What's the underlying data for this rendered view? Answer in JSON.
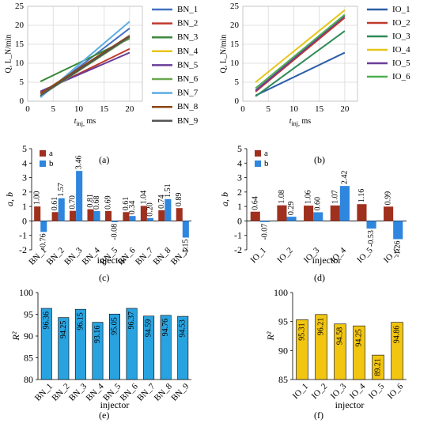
{
  "chart_data": [
    {
      "id": "a",
      "type": "line",
      "panel_label": "(a)",
      "xlabel": "t_inj, ms",
      "ylabel": "Q, L_N/min",
      "xlim": [
        0,
        22.5
      ],
      "ylim": [
        0,
        25
      ],
      "xticks": [
        0,
        5,
        10,
        15,
        20
      ],
      "yticks": [
        0,
        5,
        10,
        15,
        20,
        25
      ],
      "grid": true,
      "legend_position": "right",
      "series": [
        {
          "name": "BN_1",
          "color": "#4472C4",
          "x": [
            2.5,
            20
          ],
          "y": [
            1.2,
            19.2
          ]
        },
        {
          "name": "BN_2",
          "color": "#C0392B",
          "x": [
            2.5,
            20
          ],
          "y": [
            2.3,
            13.8
          ]
        },
        {
          "name": "BN_3",
          "color": "#3A8A3A",
          "x": [
            2.5,
            20
          ],
          "y": [
            5.2,
            16.5
          ]
        },
        {
          "name": "BN_4",
          "color": "#E6C619",
          "x": [
            2.5,
            20
          ],
          "y": [
            2.0,
            16.8
          ]
        },
        {
          "name": "BN_5",
          "color": "#6A3D9A",
          "x": [
            2.5,
            20
          ],
          "y": [
            2.6,
            12.8
          ]
        },
        {
          "name": "BN_6",
          "color": "#6AA84F",
          "x": [
            2.5,
            20
          ],
          "y": [
            1.4,
            16.8
          ]
        },
        {
          "name": "BN_7",
          "color": "#5DADE2",
          "x": [
            2.5,
            20
          ],
          "y": [
            1.0,
            21.0
          ]
        },
        {
          "name": "BN_8",
          "color": "#8B4513",
          "x": [
            2.5,
            20
          ],
          "y": [
            2.0,
            17.3
          ]
        },
        {
          "name": "BN_9",
          "color": "#555555",
          "x": [
            2.5,
            20
          ],
          "y": [
            1.5,
            17.0
          ]
        }
      ]
    },
    {
      "id": "b",
      "type": "line",
      "panel_label": "(b)",
      "xlabel": "t_inj, ms",
      "ylabel": "Q, L_N/min",
      "xlim": [
        0,
        22.5
      ],
      "ylim": [
        0,
        25
      ],
      "xticks": [
        0,
        5,
        10,
        15,
        20
      ],
      "yticks": [
        0,
        5,
        10,
        15,
        20,
        25
      ],
      "grid": true,
      "legend_position": "right",
      "series": [
        {
          "name": "IO_1",
          "color": "#2E5FA8",
          "x": [
            2.5,
            20
          ],
          "y": [
            1.5,
            12.8
          ]
        },
        {
          "name": "IO_2",
          "color": "#C0392B",
          "x": [
            2.5,
            20
          ],
          "y": [
            2.5,
            22.0
          ]
        },
        {
          "name": "IO_3",
          "color": "#2E8B57",
          "x": [
            2.5,
            20
          ],
          "y": [
            1.3,
            18.5
          ]
        },
        {
          "name": "IO_4",
          "color": "#E6C619",
          "x": [
            2.5,
            20
          ],
          "y": [
            5.0,
            24.0
          ]
        },
        {
          "name": "IO_5",
          "color": "#6A3D9A",
          "x": [
            2.5,
            20
          ],
          "y": [
            2.8,
            22.5
          ]
        },
        {
          "name": "IO_6",
          "color": "#4CAF50",
          "x": [
            2.5,
            20
          ],
          "y": [
            3.4,
            22.8
          ]
        }
      ]
    },
    {
      "id": "c",
      "type": "bar",
      "panel_label": "(c)",
      "xlabel": "injector",
      "ylabel": "a, b",
      "ylim": [
        -2,
        5
      ],
      "yticks": [
        -2,
        -1,
        0,
        1,
        2,
        3,
        4,
        5
      ],
      "legend_position": "top-left",
      "categories": [
        "BN_1",
        "BN_2",
        "BN_3",
        "BN_4",
        "BN_5",
        "BN_6",
        "BN_7",
        "BN_8",
        "BN_9"
      ],
      "series": [
        {
          "name": "a",
          "color": "#A0301E",
          "values": [
            1.0,
            0.61,
            0.7,
            0.81,
            0.69,
            0.61,
            1.04,
            0.74,
            0.89
          ]
        },
        {
          "name": "b",
          "color": "#2E86DE",
          "values": [
            -0.76,
            1.57,
            3.46,
            0.68,
            -0.08,
            0.34,
            0.2,
            1.51,
            -1.15
          ]
        }
      ],
      "labels": [
        [
          "1.00",
          "0.61",
          "0.70",
          "0.81",
          "0.69",
          "0.61",
          "1.04",
          "0.74",
          "0.89"
        ],
        [
          "-0.76",
          "1.57",
          "3.46",
          "0.68",
          "-0.08",
          "0.34",
          "0.20",
          "1.51",
          "-1.15"
        ]
      ]
    },
    {
      "id": "d",
      "type": "bar",
      "panel_label": "(d)",
      "xlabel": "injector",
      "ylabel": "a, b",
      "ylim": [
        -2,
        5
      ],
      "yticks": [
        -2,
        -1,
        0,
        1,
        2,
        3,
        4,
        5
      ],
      "legend_position": "top-left",
      "categories": [
        "IO_1",
        "IO_2",
        "IO_3",
        "IO_4",
        "IO_5",
        "IO_6"
      ],
      "series": [
        {
          "name": "a",
          "color": "#A0301E",
          "values": [
            0.64,
            1.08,
            1.06,
            1.07,
            1.16,
            0.99
          ]
        },
        {
          "name": "b",
          "color": "#2E86DE",
          "values": [
            -0.07,
            0.29,
            0.6,
            2.42,
            -0.53,
            -1.26
          ]
        }
      ],
      "labels": [
        [
          "0.64",
          "1.08",
          "1.06",
          "1.07",
          "1.16",
          "0.99"
        ],
        [
          "-0.07",
          "0.29",
          "0.60",
          "2.42",
          "-0.53",
          "-1.26"
        ]
      ]
    },
    {
      "id": "e",
      "type": "bar",
      "panel_label": "(e)",
      "xlabel": "injector",
      "ylabel": "R²",
      "ylim": [
        80,
        100
      ],
      "yticks": [
        80,
        85,
        90,
        95,
        100
      ],
      "categories": [
        "BN_1",
        "BN_2",
        "BN_3",
        "BN_4",
        "BN_5",
        "BN_6",
        "BN_7",
        "BN_8",
        "BN_9"
      ],
      "series": [
        {
          "name": "",
          "color": "#29A3E0",
          "values": [
            96.36,
            94.25,
            96.15,
            93.16,
            95.05,
            96.37,
            94.59,
            94.76,
            94.53
          ]
        }
      ],
      "labels": [
        [
          "96.36",
          "94.25",
          "96.15",
          "93.16",
          "95.05",
          "96.37",
          "94.59",
          "94.76",
          "94.53"
        ]
      ]
    },
    {
      "id": "f",
      "type": "bar",
      "panel_label": "(f)",
      "xlabel": "injector",
      "ylabel": "R²",
      "ylim": [
        85,
        100
      ],
      "yticks": [
        85,
        90,
        95,
        100
      ],
      "categories": [
        "IO_1",
        "IO_2",
        "IO_3",
        "IO_4",
        "IO_5",
        "IO_6"
      ],
      "series": [
        {
          "name": "",
          "color": "#F2C511",
          "values": [
            95.31,
            96.21,
            94.58,
            94.25,
            89.21,
            94.86
          ]
        }
      ],
      "labels": [
        [
          "95.31",
          "96.21",
          "94.58",
          "94.25",
          "89.21",
          "94.86"
        ]
      ]
    }
  ]
}
